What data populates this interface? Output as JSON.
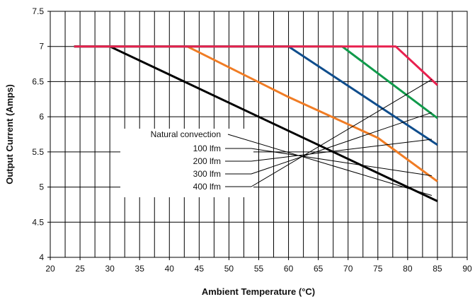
{
  "chart_data": {
    "type": "line",
    "title": "",
    "xlabel": "Ambient Temperature (°C)",
    "ylabel": "Output Current (Amps)",
    "xlim": [
      20,
      90
    ],
    "ylim": [
      4,
      7.5
    ],
    "x_ticks": [
      20,
      25,
      30,
      35,
      40,
      45,
      50,
      55,
      60,
      65,
      70,
      75,
      80,
      85,
      90
    ],
    "y_ticks": [
      4,
      4.5,
      5,
      5.5,
      6,
      6.5,
      7,
      7.5
    ],
    "x_tick_labels": [
      "20",
      "25",
      "30",
      "35",
      "40",
      "45",
      "50",
      "55",
      "60",
      "65",
      "70",
      "75",
      "80",
      "85",
      "90"
    ],
    "y_tick_labels": [
      "4",
      "4.5",
      "5",
      "5.5",
      "6",
      "6.5",
      "7",
      "7.5"
    ],
    "grid": true,
    "legend_position": "left-center (callout leaders to line ends)",
    "series": [
      {
        "name": "Natural convection",
        "color": "#000000",
        "points": [
          [
            24,
            7
          ],
          [
            30,
            7
          ],
          [
            85,
            4.8
          ]
        ]
      },
      {
        "name": "100 lfm",
        "color": "#f07c24",
        "points": [
          [
            24,
            7
          ],
          [
            43,
            7
          ],
          [
            60,
            6.28
          ],
          [
            75,
            5.7
          ],
          [
            85,
            5.08
          ]
        ]
      },
      {
        "name": "200 lfm",
        "color": "#0f4d8c",
        "points": [
          [
            24,
            7
          ],
          [
            60,
            7
          ],
          [
            85,
            5.6
          ]
        ]
      },
      {
        "name": "300 lfm",
        "color": "#109a4b",
        "points": [
          [
            24,
            7
          ],
          [
            69,
            7
          ],
          [
            85,
            5.98
          ]
        ]
      },
      {
        "name": "400 lfm",
        "color": "#e8204e",
        "points": [
          [
            24,
            7
          ],
          [
            78,
            7
          ],
          [
            85,
            6.45
          ]
        ]
      }
    ]
  }
}
